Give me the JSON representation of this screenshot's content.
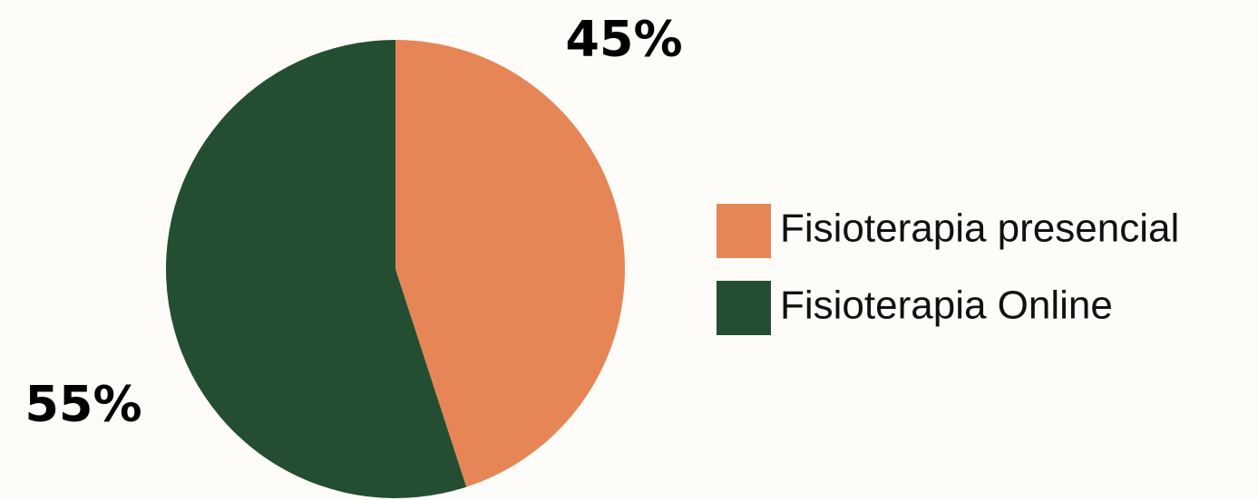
{
  "chart_data": {
    "type": "pie",
    "categories": [
      "Fisioterapia presencial",
      "Fisioterapia Online"
    ],
    "values": [
      45,
      55
    ],
    "value_labels": [
      "45%",
      "55%"
    ],
    "colors": [
      "#e68656",
      "#234e31"
    ],
    "legend": "right"
  }
}
